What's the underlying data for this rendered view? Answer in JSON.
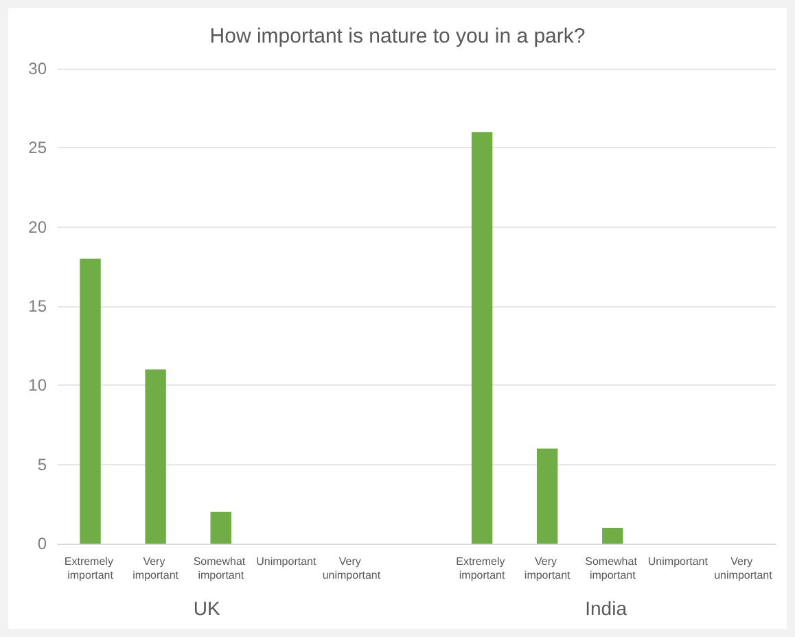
{
  "chart_data": {
    "type": "bar",
    "title": "How important is nature to you in a park?",
    "categories": [
      "Extremely important",
      "Very important",
      "Somewhat important",
      "Unimportant",
      "Very unimportant",
      null,
      "Extremely important",
      "Very important",
      "Somewhat important",
      "Unimportant",
      "Very unimportant"
    ],
    "values": [
      18,
      11,
      2,
      0,
      0,
      null,
      26,
      6,
      1,
      0,
      0
    ],
    "color": "#70ad47",
    "ylim": [
      0,
      30
    ],
    "yticks": [
      0,
      5,
      10,
      15,
      20,
      25,
      30
    ],
    "grid": "y",
    "annotations": [
      "UK",
      "India"
    ]
  }
}
